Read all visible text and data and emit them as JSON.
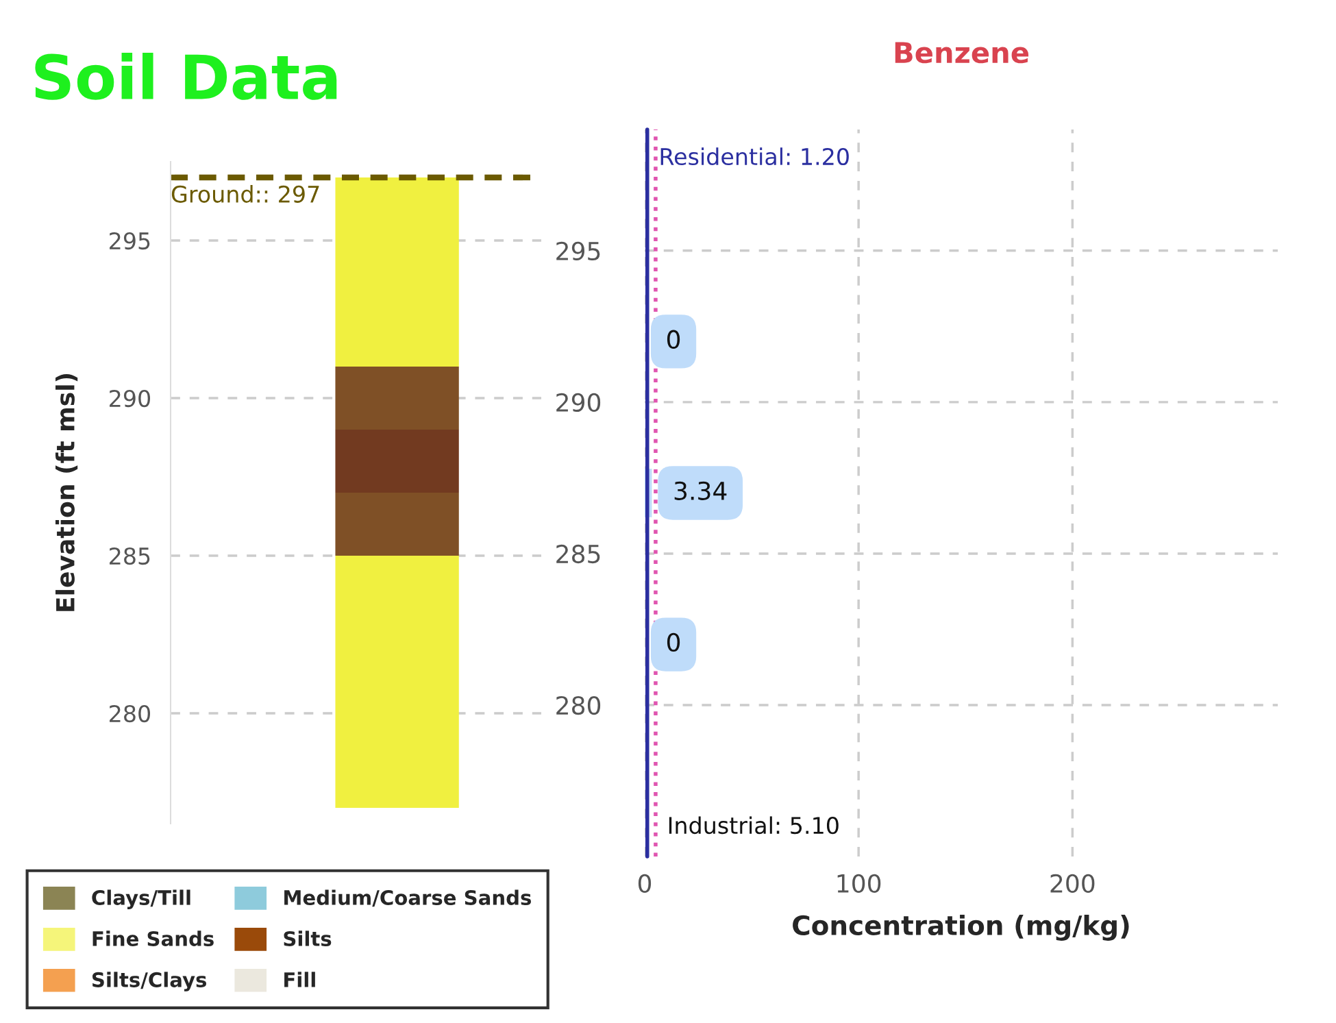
{
  "chart_data": [
    {
      "type": "bar",
      "title": "Soil Data",
      "ylabel": "Elevation (ft msl)",
      "categories": [
        null
      ],
      "series": [
        {
          "name": "Clays/Till",
          "color": "#8b8454",
          "values": [
            null
          ]
        },
        {
          "name": "Fine Sands",
          "color": "#f5f57a",
          "values": [
            null
          ]
        },
        {
          "name": "Silts/Clays",
          "color": "#f4a050",
          "values": [
            null
          ]
        },
        {
          "name": "Medium/Coarse Sands",
          "color": "#8ecbdc",
          "values": [
            null
          ]
        },
        {
          "name": "Silts",
          "color": "#9a4a0a",
          "values": [
            null
          ]
        },
        {
          "name": "Fill",
          "color": "#ebe8de",
          "values": [
            null
          ]
        }
      ],
      "bands": [
        {
          "axis": "y",
          "from": 277,
          "to": 285,
          "color": "#f0f040"
        },
        {
          "axis": "y",
          "from": 285,
          "to": 287,
          "color": "#7f5026"
        },
        {
          "axis": "y",
          "from": 287,
          "to": 289,
          "color": "#723a20"
        },
        {
          "axis": "y",
          "from": 289,
          "to": 291,
          "color": "#7f5026"
        },
        {
          "axis": "y",
          "from": 291,
          "to": 297,
          "color": "#f0f040"
        }
      ],
      "ylim": [
        276.5,
        297.5
      ],
      "yticks": [
        280,
        285,
        290,
        295
      ],
      "grid": "y",
      "legend": "bottom",
      "ref_lines": [
        {
          "axis": "y",
          "value": 297,
          "label": "Ground:: 297",
          "color": "#6b5a00",
          "line_style": "dashed"
        }
      ]
    },
    {
      "type": "bar",
      "orientation": "horizontal",
      "title": "Benzene",
      "xlabel": "Concentration (mg/kg)",
      "x": [
        292,
        287,
        282
      ],
      "values": [
        0,
        3.34,
        0
      ],
      "data_labels": true,
      "color": "#bfdcfa",
      "xlim": [
        0,
        296
      ],
      "xticks": [
        0,
        100,
        200
      ],
      "ylim": [
        275,
        299
      ],
      "yticks": [
        280,
        285,
        290,
        295
      ],
      "grid": true,
      "ref_lines": [
        {
          "axis": "x",
          "value": 1.2,
          "label": "Residential: 1.20",
          "color": "#2b2fa0",
          "line_style": "solid"
        },
        {
          "axis": "x",
          "value": 5.1,
          "label": "Industrial: 5.10",
          "color": "#e055b0",
          "line_style": "dotted"
        }
      ]
    }
  ]
}
